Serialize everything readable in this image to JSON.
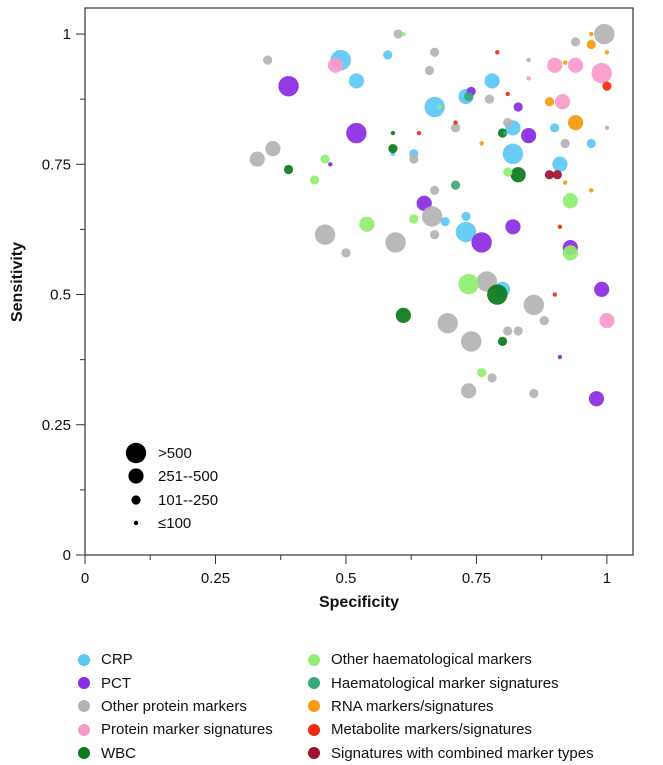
{
  "chart_data": {
    "type": "scatter",
    "xlabel": "Specificity",
    "ylabel": "Sensitivity",
    "xlim": [
      0,
      1.05
    ],
    "ylim": [
      0,
      1.05
    ],
    "x_ticks": [
      0,
      0.25,
      0.5,
      0.75,
      1
    ],
    "y_ticks": [
      0,
      0.25,
      0.5,
      0.75,
      1
    ],
    "x_tick_labels": [
      "0",
      "0.25",
      "0.5",
      "0.75",
      "1"
    ],
    "y_tick_labels": [
      "0",
      "0.25",
      "0.5",
      "0.75",
      "1"
    ],
    "grid": false,
    "size_legend": {
      "placement": "bottom-left",
      "entries": [
        {
          "label": ">500",
          "size": 4
        },
        {
          "label": "251--500",
          "size": 3
        },
        {
          "label": "101--250",
          "size": 2
        },
        {
          "label": "≤100",
          "size": 1
        }
      ]
    },
    "category_legend": {
      "placement": "below",
      "items": [
        {
          "label": "CRP",
          "color": "#5bc8f5"
        },
        {
          "label": "PCT",
          "color": "#8a2be2"
        },
        {
          "label": "Other protein markers",
          "color": "#b3b3b3"
        },
        {
          "label": "Protein marker signatures",
          "color": "#f79ac9"
        },
        {
          "label": "WBC",
          "color": "#0a7a1a"
        },
        {
          "label": "Other haematological markers",
          "color": "#90ee70"
        },
        {
          "label": "Haematological marker signatures",
          "color": "#3aa877"
        },
        {
          "label": "RNA markers/signatures",
          "color": "#f7990c"
        },
        {
          "label": "Metabolite markers/signatures",
          "color": "#ee2a10"
        },
        {
          "label": "Signatures with combined marker types",
          "color": "#a0102e"
        }
      ]
    },
    "series": [
      {
        "name": "CRP",
        "points": [
          {
            "x": 0.49,
            "y": 0.95,
            "size": 4
          },
          {
            "x": 0.52,
            "y": 0.91,
            "size": 3
          },
          {
            "x": 0.58,
            "y": 0.96,
            "size": 2
          },
          {
            "x": 0.67,
            "y": 0.86,
            "size": 4
          },
          {
            "x": 0.73,
            "y": 0.88,
            "size": 3
          },
          {
            "x": 0.78,
            "y": 0.91,
            "size": 3
          },
          {
            "x": 0.82,
            "y": 0.82,
            "size": 3
          },
          {
            "x": 0.82,
            "y": 0.77,
            "size": 4
          },
          {
            "x": 0.85,
            "y": 0.8,
            "size": 2
          },
          {
            "x": 0.91,
            "y": 0.75,
            "size": 3
          },
          {
            "x": 0.97,
            "y": 0.79,
            "size": 2
          },
          {
            "x": 0.73,
            "y": 0.62,
            "size": 4
          },
          {
            "x": 0.73,
            "y": 0.65,
            "size": 2
          },
          {
            "x": 0.69,
            "y": 0.64,
            "size": 2
          },
          {
            "x": 0.8,
            "y": 0.51,
            "size": 3
          },
          {
            "x": 0.63,
            "y": 0.77,
            "size": 2
          },
          {
            "x": 0.59,
            "y": 0.77,
            "size": 1
          },
          {
            "x": 0.9,
            "y": 0.82,
            "size": 2
          }
        ]
      },
      {
        "name": "PCT",
        "points": [
          {
            "x": 0.39,
            "y": 0.9,
            "size": 4
          },
          {
            "x": 0.52,
            "y": 0.81,
            "size": 4
          },
          {
            "x": 0.76,
            "y": 0.6,
            "size": 4
          },
          {
            "x": 0.65,
            "y": 0.675,
            "size": 3
          },
          {
            "x": 0.82,
            "y": 0.63,
            "size": 3
          },
          {
            "x": 0.85,
            "y": 0.805,
            "size": 3
          },
          {
            "x": 0.74,
            "y": 0.89,
            "size": 2
          },
          {
            "x": 0.83,
            "y": 0.86,
            "size": 2
          },
          {
            "x": 0.93,
            "y": 0.59,
            "size": 3
          },
          {
            "x": 0.99,
            "y": 0.51,
            "size": 3
          },
          {
            "x": 0.98,
            "y": 0.3,
            "size": 3
          },
          {
            "x": 0.91,
            "y": 0.38,
            "size": 1
          },
          {
            "x": 0.47,
            "y": 0.75,
            "size": 1
          }
        ]
      },
      {
        "name": "Other protein markers",
        "points": [
          {
            "x": 0.35,
            "y": 0.95,
            "size": 2
          },
          {
            "x": 0.6,
            "y": 1.0,
            "size": 2
          },
          {
            "x": 0.66,
            "y": 0.93,
            "size": 2
          },
          {
            "x": 0.67,
            "y": 0.965,
            "size": 2
          },
          {
            "x": 0.33,
            "y": 0.76,
            "size": 3
          },
          {
            "x": 0.36,
            "y": 0.78,
            "size": 3
          },
          {
            "x": 0.46,
            "y": 0.615,
            "size": 4
          },
          {
            "x": 0.5,
            "y": 0.58,
            "size": 2
          },
          {
            "x": 0.595,
            "y": 0.6,
            "size": 4
          },
          {
            "x": 0.665,
            "y": 0.65,
            "size": 4
          },
          {
            "x": 0.67,
            "y": 0.7,
            "size": 2
          },
          {
            "x": 0.67,
            "y": 0.615,
            "size": 2
          },
          {
            "x": 0.695,
            "y": 0.445,
            "size": 4
          },
          {
            "x": 0.74,
            "y": 0.41,
            "size": 4
          },
          {
            "x": 0.735,
            "y": 0.315,
            "size": 3
          },
          {
            "x": 0.77,
            "y": 0.525,
            "size": 4
          },
          {
            "x": 0.775,
            "y": 0.875,
            "size": 2
          },
          {
            "x": 0.81,
            "y": 0.43,
            "size": 2
          },
          {
            "x": 0.83,
            "y": 0.43,
            "size": 2
          },
          {
            "x": 0.86,
            "y": 0.48,
            "size": 4
          },
          {
            "x": 0.86,
            "y": 0.31,
            "size": 2
          },
          {
            "x": 0.88,
            "y": 0.45,
            "size": 2
          },
          {
            "x": 0.71,
            "y": 0.82,
            "size": 2
          },
          {
            "x": 0.78,
            "y": 0.34,
            "size": 2
          },
          {
            "x": 0.94,
            "y": 0.985,
            "size": 2
          },
          {
            "x": 0.995,
            "y": 1.0,
            "size": 4
          },
          {
            "x": 0.85,
            "y": 0.95,
            "size": 1
          },
          {
            "x": 1.0,
            "y": 0.82,
            "size": 1
          },
          {
            "x": 0.92,
            "y": 0.79,
            "size": 2
          },
          {
            "x": 0.63,
            "y": 0.76,
            "size": 2
          },
          {
            "x": 0.81,
            "y": 0.83,
            "size": 2
          }
        ]
      },
      {
        "name": "Protein marker signatures",
        "points": [
          {
            "x": 0.48,
            "y": 0.94,
            "size": 3
          },
          {
            "x": 0.9,
            "y": 0.94,
            "size": 3
          },
          {
            "x": 0.915,
            "y": 0.87,
            "size": 3
          },
          {
            "x": 0.94,
            "y": 0.94,
            "size": 3
          },
          {
            "x": 0.99,
            "y": 0.925,
            "size": 4
          },
          {
            "x": 1.0,
            "y": 0.45,
            "size": 3
          },
          {
            "x": 0.85,
            "y": 0.915,
            "size": 1
          }
        ]
      },
      {
        "name": "WBC",
        "points": [
          {
            "x": 0.39,
            "y": 0.74,
            "size": 2
          },
          {
            "x": 0.59,
            "y": 0.78,
            "size": 2
          },
          {
            "x": 0.59,
            "y": 0.81,
            "size": 1
          },
          {
            "x": 0.61,
            "y": 0.46,
            "size": 3
          },
          {
            "x": 0.79,
            "y": 0.5,
            "size": 4
          },
          {
            "x": 0.83,
            "y": 0.73,
            "size": 3
          },
          {
            "x": 0.8,
            "y": 0.81,
            "size": 2
          },
          {
            "x": 0.8,
            "y": 0.41,
            "size": 2
          }
        ]
      },
      {
        "name": "Other haematological markers",
        "points": [
          {
            "x": 0.44,
            "y": 0.72,
            "size": 2
          },
          {
            "x": 0.46,
            "y": 0.76,
            "size": 2
          },
          {
            "x": 0.54,
            "y": 0.635,
            "size": 3
          },
          {
            "x": 0.63,
            "y": 0.645,
            "size": 2
          },
          {
            "x": 0.735,
            "y": 0.52,
            "size": 4
          },
          {
            "x": 0.76,
            "y": 0.35,
            "size": 2
          },
          {
            "x": 0.93,
            "y": 0.68,
            "size": 3
          },
          {
            "x": 0.93,
            "y": 0.58,
            "size": 3
          },
          {
            "x": 0.61,
            "y": 1.0,
            "size": 1
          },
          {
            "x": 0.68,
            "y": 0.86,
            "size": 1
          },
          {
            "x": 0.81,
            "y": 0.735,
            "size": 2
          }
        ]
      },
      {
        "name": "Haematological marker signatures",
        "points": [
          {
            "x": 0.71,
            "y": 0.71,
            "size": 2
          },
          {
            "x": 0.735,
            "y": 0.88,
            "size": 2
          },
          {
            "x": 0.805,
            "y": 0.81,
            "size": 1
          }
        ]
      },
      {
        "name": "RNA markers/signatures",
        "points": [
          {
            "x": 0.94,
            "y": 0.83,
            "size": 3
          },
          {
            "x": 0.97,
            "y": 0.98,
            "size": 2
          },
          {
            "x": 0.89,
            "y": 0.87,
            "size": 2
          },
          {
            "x": 1.0,
            "y": 0.965,
            "size": 1
          },
          {
            "x": 0.97,
            "y": 0.7,
            "size": 1
          },
          {
            "x": 0.92,
            "y": 0.715,
            "size": 1
          },
          {
            "x": 0.92,
            "y": 0.945,
            "size": 1
          },
          {
            "x": 0.97,
            "y": 1.0,
            "size": 1
          },
          {
            "x": 0.76,
            "y": 0.79,
            "size": 1
          }
        ]
      },
      {
        "name": "Metabolite markers/signatures",
        "points": [
          {
            "x": 1.0,
            "y": 0.9,
            "size": 2
          },
          {
            "x": 0.79,
            "y": 0.965,
            "size": 1
          },
          {
            "x": 0.9,
            "y": 0.5,
            "size": 1
          },
          {
            "x": 0.91,
            "y": 0.63,
            "size": 1
          },
          {
            "x": 0.64,
            "y": 0.81,
            "size": 1
          },
          {
            "x": 0.71,
            "y": 0.83,
            "size": 1
          },
          {
            "x": 0.81,
            "y": 0.885,
            "size": 1
          }
        ]
      },
      {
        "name": "Signatures with combined marker types",
        "points": [
          {
            "x": 0.89,
            "y": 0.73,
            "size": 2
          },
          {
            "x": 0.905,
            "y": 0.73,
            "size": 2
          }
        ]
      }
    ]
  }
}
